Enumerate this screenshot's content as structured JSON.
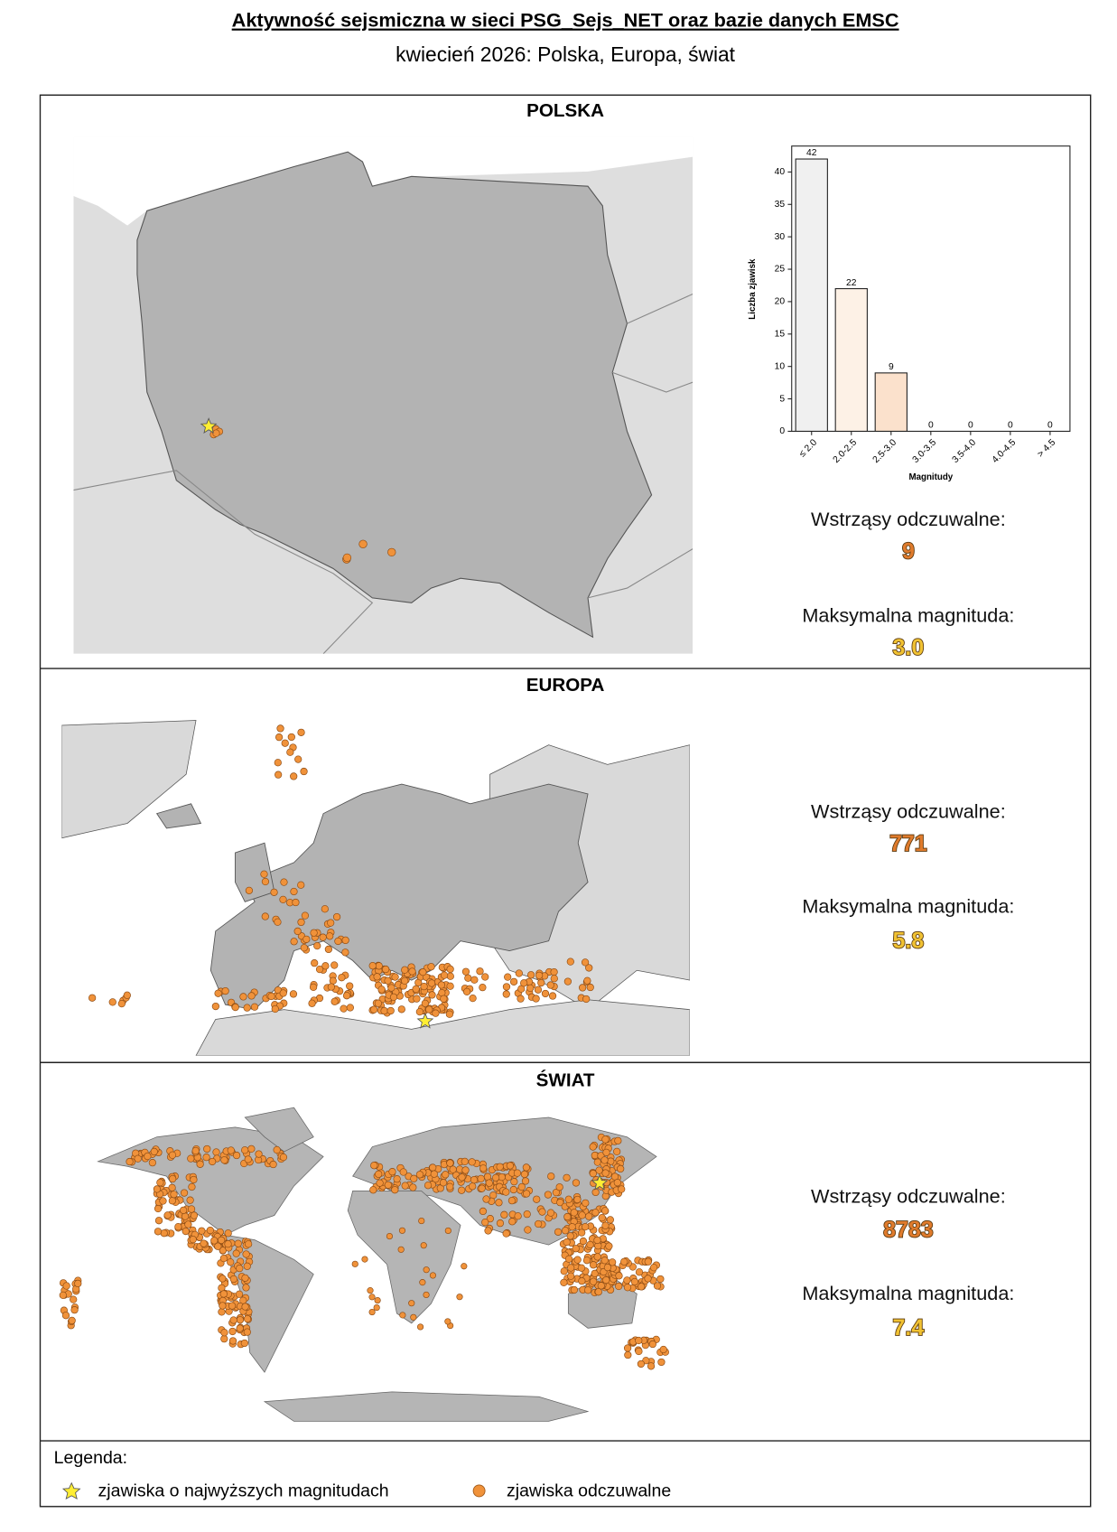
{
  "header": {
    "title": "Aktywność sejsmiczna w sieci PSG_Sejs_NET oraz bazie danych EMSC",
    "subtitle": "kwiecień 2026: Polska, Europa, świat"
  },
  "sections": [
    {
      "title": "POLSKA",
      "felt_label": "Wstrząsy odczuwalne:",
      "felt": 9,
      "max_label": "Maksymalna magnituda:",
      "max_magnitude": "3.0"
    },
    {
      "title": "EUROPA",
      "felt_label": "Wstrząsy odczuwalne:",
      "felt": 771,
      "max_label": "Maksymalna magnituda:",
      "max_magnitude": "5.8"
    },
    {
      "title": "ŚWIAT",
      "felt_label": "Wstrząsy odczuwalne:",
      "felt": 8783,
      "max_label": "Maksymalna magnituda:",
      "max_magnitude": "7.4"
    }
  ],
  "chart_data": {
    "type": "bar",
    "categories": [
      "≤ 2.0",
      "2.0-2.5",
      "2.5-3.0",
      "3.0-3.5",
      "3.5-4.0",
      "4.0-4.5",
      "> 4.5"
    ],
    "values": [
      42,
      22,
      9,
      0,
      0,
      0,
      0
    ],
    "colors": [
      "#f0f0f0",
      "#fdf1e6",
      "#fbe1cc",
      "#fbe1cc",
      "#fbe1cc",
      "#fbe1cc",
      "#fbe1cc"
    ],
    "xlabel": "Magnitudy",
    "ylabel": "Liczba zjawisk",
    "ylim": [
      0,
      44
    ],
    "yticks": [
      0,
      5,
      10,
      15,
      20,
      25,
      30,
      35,
      40
    ]
  },
  "legend": {
    "title": "Legenda:",
    "items": [
      "zjawiska o najwyższych magnitudach",
      "zjawiska odczuwalne"
    ]
  }
}
